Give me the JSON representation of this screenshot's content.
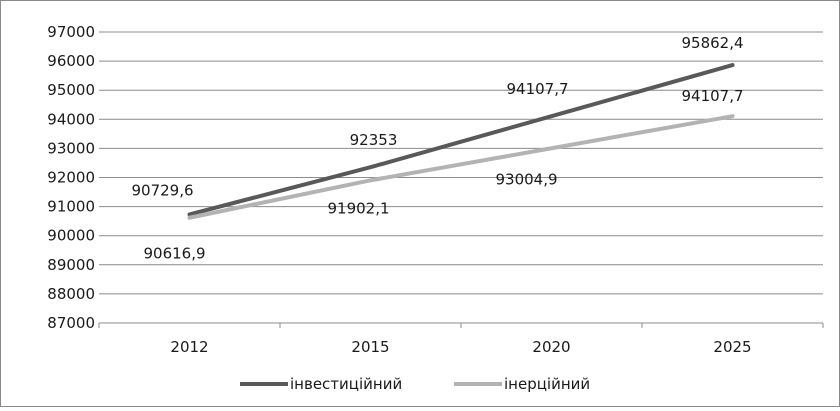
{
  "chart_data": {
    "type": "line",
    "categories": [
      "2012",
      "2015",
      "2020",
      "2025"
    ],
    "ylim": [
      87000,
      97000
    ],
    "y_ticks": [
      87000,
      88000,
      89000,
      90000,
      91000,
      92000,
      93000,
      94000,
      95000,
      96000,
      97000
    ],
    "grid": "horizontal",
    "legend_position": "bottom",
    "series": [
      {
        "name": "інвестиційний",
        "values": [
          90729.6,
          92353,
          94107.7,
          95862.4
        ],
        "labels": [
          "90729,6",
          "92353",
          "94107,7",
          "95862,4"
        ],
        "color": "#595959"
      },
      {
        "name": "інерційний",
        "values": [
          90616.9,
          91902.1,
          93004.9,
          94107.7
        ],
        "labels": [
          "90616,9",
          "91902,1",
          "93004,9",
          "94107,7"
        ],
        "color": "#b3b3b3"
      }
    ]
  }
}
